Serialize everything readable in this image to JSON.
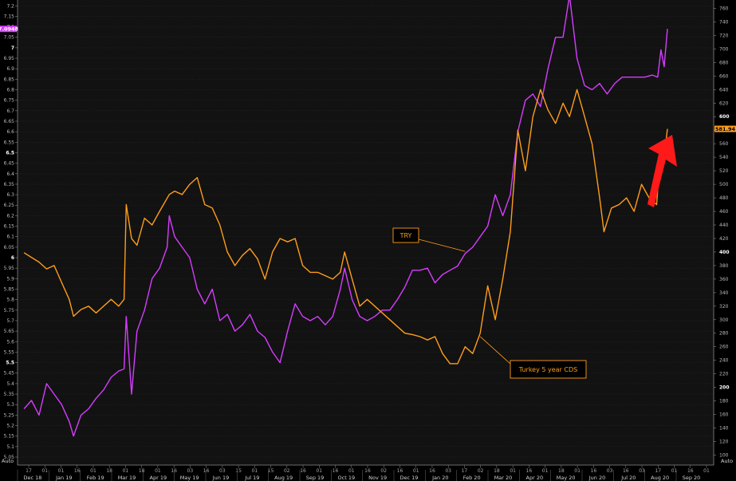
{
  "chart_data": {
    "type": "line",
    "title": "",
    "left_axis": {
      "ticks": [
        "7.2",
        "7.15",
        "7.1",
        "7.05",
        "7",
        "6.95",
        "6.9",
        "6.85",
        "6.8",
        "6.75",
        "6.7",
        "6.65",
        "6.6",
        "6.55",
        "6.5",
        "6.45",
        "6.4",
        "6.35",
        "6.3",
        "6.25",
        "6.2",
        "6.15",
        "6.1",
        "6.05",
        "6",
        "5.95",
        "5.9",
        "5.85",
        "5.8",
        "5.75",
        "5.7",
        "5.65",
        "5.6",
        "5.55",
        "5.5",
        "5.45",
        "5.4",
        "5.35",
        "5.3",
        "5.25",
        "5.2",
        "5.15",
        "5.1",
        "5.05"
      ],
      "range": [
        5.05,
        7.22
      ],
      "bold_ticks": [
        "7",
        "6.5",
        "6",
        "5.5"
      ]
    },
    "right_axis": {
      "ticks": [
        "760",
        "740",
        "720",
        "700",
        "680",
        "660",
        "640",
        "620",
        "600",
        "580",
        "560",
        "540",
        "520",
        "500",
        "480",
        "460",
        "440",
        "420",
        "400",
        "380",
        "360",
        "340",
        "320",
        "300",
        "280",
        "260",
        "240",
        "220",
        "200",
        "180",
        "160",
        "140",
        "120",
        "100"
      ],
      "range": [
        97,
        770
      ],
      "bold_ticks": [
        "600",
        "400",
        "200"
      ]
    },
    "x_axis": {
      "minor_ticks": [
        "17",
        "01",
        "01",
        "16",
        "01",
        "18",
        "01",
        "18",
        "01",
        "16",
        "03",
        "16",
        "03",
        "15",
        "01",
        "15",
        "02",
        "16",
        "01",
        "16",
        "01",
        "16",
        "02",
        "16",
        "01",
        "16",
        "03",
        "17",
        "02",
        "18",
        "01",
        "16",
        "01",
        "18",
        "01",
        "16",
        "03",
        "16",
        "03",
        "17",
        "01",
        "16",
        "01"
      ],
      "months": [
        "Dec 18",
        "Jan 19",
        "Feb 19",
        "Mar 19",
        "Apr 19",
        "May 19",
        "Jun 19",
        "Jul 19",
        "Aug 19",
        "Sep 19",
        "Oct 19",
        "Nov 19",
        "Dec 19",
        "Jan 20",
        "Feb 20",
        "Mar 20",
        "Apr 20",
        "May 20",
        "Jun 20",
        "Jul 20",
        "Aug 20",
        "Sep 20"
      ]
    },
    "auto_label": "Auto",
    "series": [
      {
        "name": "TRY",
        "axis": "left",
        "color": "#d63dff",
        "current_value_label": "7.0948",
        "points": [
          [
            "2018-12-17",
            5.28
          ],
          [
            "2018-12-24",
            5.32
          ],
          [
            "2018-12-31",
            5.25
          ],
          [
            "2019-01-07",
            5.4
          ],
          [
            "2019-01-14",
            5.35
          ],
          [
            "2019-01-21",
            5.3
          ],
          [
            "2019-01-28",
            5.22
          ],
          [
            "2019-02-01",
            5.15
          ],
          [
            "2019-02-08",
            5.25
          ],
          [
            "2019-02-15",
            5.28
          ],
          [
            "2019-02-22",
            5.33
          ],
          [
            "2019-03-01",
            5.37
          ],
          [
            "2019-03-08",
            5.43
          ],
          [
            "2019-03-15",
            5.46
          ],
          [
            "2019-03-20",
            5.47
          ],
          [
            "2019-03-22",
            5.72
          ],
          [
            "2019-03-27",
            5.35
          ],
          [
            "2019-04-01",
            5.65
          ],
          [
            "2019-04-08",
            5.75
          ],
          [
            "2019-04-15",
            5.9
          ],
          [
            "2019-04-22",
            5.95
          ],
          [
            "2019-04-29",
            6.05
          ],
          [
            "2019-05-01",
            6.2
          ],
          [
            "2019-05-06",
            6.1
          ],
          [
            "2019-05-13",
            6.05
          ],
          [
            "2019-05-20",
            6.0
          ],
          [
            "2019-05-27",
            5.85
          ],
          [
            "2019-06-03",
            5.78
          ],
          [
            "2019-06-10",
            5.85
          ],
          [
            "2019-06-17",
            5.7
          ],
          [
            "2019-06-24",
            5.73
          ],
          [
            "2019-07-01",
            5.65
          ],
          [
            "2019-07-08",
            5.68
          ],
          [
            "2019-07-15",
            5.73
          ],
          [
            "2019-07-22",
            5.65
          ],
          [
            "2019-07-29",
            5.62
          ],
          [
            "2019-08-05",
            5.55
          ],
          [
            "2019-08-12",
            5.5
          ],
          [
            "2019-08-19",
            5.65
          ],
          [
            "2019-08-26",
            5.78
          ],
          [
            "2019-09-02",
            5.72
          ],
          [
            "2019-09-09",
            5.7
          ],
          [
            "2019-09-16",
            5.72
          ],
          [
            "2019-09-23",
            5.68
          ],
          [
            "2019-09-30",
            5.72
          ],
          [
            "2019-10-07",
            5.85
          ],
          [
            "2019-10-11",
            5.95
          ],
          [
            "2019-10-18",
            5.8
          ],
          [
            "2019-10-25",
            5.72
          ],
          [
            "2019-11-01",
            5.7
          ],
          [
            "2019-11-08",
            5.72
          ],
          [
            "2019-11-15",
            5.75
          ],
          [
            "2019-11-22",
            5.75
          ],
          [
            "2019-11-29",
            5.8
          ],
          [
            "2019-12-06",
            5.86
          ],
          [
            "2019-12-13",
            5.94
          ],
          [
            "2019-12-20",
            5.94
          ],
          [
            "2019-12-27",
            5.95
          ],
          [
            "2020-01-03",
            5.88
          ],
          [
            "2020-01-10",
            5.92
          ],
          [
            "2020-01-17",
            5.94
          ],
          [
            "2020-01-24",
            5.96
          ],
          [
            "2020-01-31",
            6.02
          ],
          [
            "2020-02-07",
            6.05
          ],
          [
            "2020-02-14",
            6.1
          ],
          [
            "2020-02-21",
            6.15
          ],
          [
            "2020-02-28",
            6.3
          ],
          [
            "2020-03-06",
            6.2
          ],
          [
            "2020-03-13",
            6.3
          ],
          [
            "2020-03-20",
            6.6
          ],
          [
            "2020-03-27",
            6.75
          ],
          [
            "2020-04-03",
            6.78
          ],
          [
            "2020-04-10",
            6.72
          ],
          [
            "2020-04-17",
            6.9
          ],
          [
            "2020-04-24",
            7.05
          ],
          [
            "2020-05-01",
            7.05
          ],
          [
            "2020-05-07",
            7.25
          ],
          [
            "2020-05-14",
            6.95
          ],
          [
            "2020-05-21",
            6.82
          ],
          [
            "2020-05-28",
            6.8
          ],
          [
            "2020-06-04",
            6.83
          ],
          [
            "2020-06-11",
            6.78
          ],
          [
            "2020-06-18",
            6.83
          ],
          [
            "2020-06-25",
            6.86
          ],
          [
            "2020-07-02",
            6.86
          ],
          [
            "2020-07-09",
            6.86
          ],
          [
            "2020-07-16",
            6.86
          ],
          [
            "2020-07-23",
            6.87
          ],
          [
            "2020-07-28",
            6.86
          ],
          [
            "2020-07-31",
            6.99
          ],
          [
            "2020-08-03",
            6.91
          ],
          [
            "2020-08-06",
            7.09
          ]
        ]
      },
      {
        "name": "Turkey 5 year CDS",
        "axis": "right",
        "color": "#ff9d1a",
        "current_value_label": "581.94",
        "points": [
          [
            "2018-12-17",
            399
          ],
          [
            "2018-12-31",
            385
          ],
          [
            "2019-01-07",
            375
          ],
          [
            "2019-01-14",
            380
          ],
          [
            "2019-01-21",
            355
          ],
          [
            "2019-01-28",
            330
          ],
          [
            "2019-02-01",
            305
          ],
          [
            "2019-02-08",
            315
          ],
          [
            "2019-02-15",
            320
          ],
          [
            "2019-02-22",
            310
          ],
          [
            "2019-03-01",
            320
          ],
          [
            "2019-03-08",
            330
          ],
          [
            "2019-03-15",
            320
          ],
          [
            "2019-03-20",
            330
          ],
          [
            "2019-03-22",
            470
          ],
          [
            "2019-03-27",
            420
          ],
          [
            "2019-04-01",
            410
          ],
          [
            "2019-04-08",
            450
          ],
          [
            "2019-04-15",
            440
          ],
          [
            "2019-04-22",
            460
          ],
          [
            "2019-05-01",
            485
          ],
          [
            "2019-05-06",
            490
          ],
          [
            "2019-05-13",
            485
          ],
          [
            "2019-05-20",
            500
          ],
          [
            "2019-05-27",
            510
          ],
          [
            "2019-06-03",
            470
          ],
          [
            "2019-06-10",
            465
          ],
          [
            "2019-06-17",
            440
          ],
          [
            "2019-06-24",
            400
          ],
          [
            "2019-07-01",
            380
          ],
          [
            "2019-07-08",
            395
          ],
          [
            "2019-07-15",
            405
          ],
          [
            "2019-07-22",
            390
          ],
          [
            "2019-07-29",
            360
          ],
          [
            "2019-08-05",
            400
          ],
          [
            "2019-08-12",
            420
          ],
          [
            "2019-08-19",
            415
          ],
          [
            "2019-08-26",
            420
          ],
          [
            "2019-09-02",
            380
          ],
          [
            "2019-09-09",
            370
          ],
          [
            "2019-09-16",
            370
          ],
          [
            "2019-09-23",
            365
          ],
          [
            "2019-09-30",
            360
          ],
          [
            "2019-10-07",
            370
          ],
          [
            "2019-10-11",
            400
          ],
          [
            "2019-10-18",
            360
          ],
          [
            "2019-10-25",
            320
          ],
          [
            "2019-11-01",
            330
          ],
          [
            "2019-11-08",
            320
          ],
          [
            "2019-11-15",
            310
          ],
          [
            "2019-11-22",
            300
          ],
          [
            "2019-11-29",
            290
          ],
          [
            "2019-12-06",
            280
          ],
          [
            "2019-12-13",
            278
          ],
          [
            "2019-12-20",
            275
          ],
          [
            "2019-12-27",
            270
          ],
          [
            "2020-01-03",
            275
          ],
          [
            "2020-01-10",
            250
          ],
          [
            "2020-01-17",
            235
          ],
          [
            "2020-01-24",
            235
          ],
          [
            "2020-01-31",
            260
          ],
          [
            "2020-02-07",
            250
          ],
          [
            "2020-02-14",
            280
          ],
          [
            "2020-02-21",
            350
          ],
          [
            "2020-02-28",
            300
          ],
          [
            "2020-03-06",
            360
          ],
          [
            "2020-03-13",
            430
          ],
          [
            "2020-03-20",
            580
          ],
          [
            "2020-03-27",
            520
          ],
          [
            "2020-04-03",
            600
          ],
          [
            "2020-04-10",
            640
          ],
          [
            "2020-04-17",
            610
          ],
          [
            "2020-04-24",
            590
          ],
          [
            "2020-05-01",
            620
          ],
          [
            "2020-05-07",
            600
          ],
          [
            "2020-05-14",
            640
          ],
          [
            "2020-05-21",
            600
          ],
          [
            "2020-05-28",
            560
          ],
          [
            "2020-06-04",
            480
          ],
          [
            "2020-06-08",
            430
          ],
          [
            "2020-06-15",
            465
          ],
          [
            "2020-06-22",
            470
          ],
          [
            "2020-06-29",
            480
          ],
          [
            "2020-07-06",
            460
          ],
          [
            "2020-07-13",
            500
          ],
          [
            "2020-07-20",
            480
          ],
          [
            "2020-07-27",
            470
          ],
          [
            "2020-07-31",
            560
          ],
          [
            "2020-08-03",
            540
          ],
          [
            "2020-08-06",
            581.94
          ]
        ]
      }
    ],
    "annotations": [
      {
        "text": "TRY",
        "series": "TRY",
        "target_date": "2020-01-31",
        "target_value": 6.03
      },
      {
        "text": "Turkey 5 year CDS",
        "series": "Turkey 5 year CDS",
        "target_date": "2020-02-14",
        "target_value": 275
      }
    ],
    "grid": true,
    "legend": "none"
  }
}
